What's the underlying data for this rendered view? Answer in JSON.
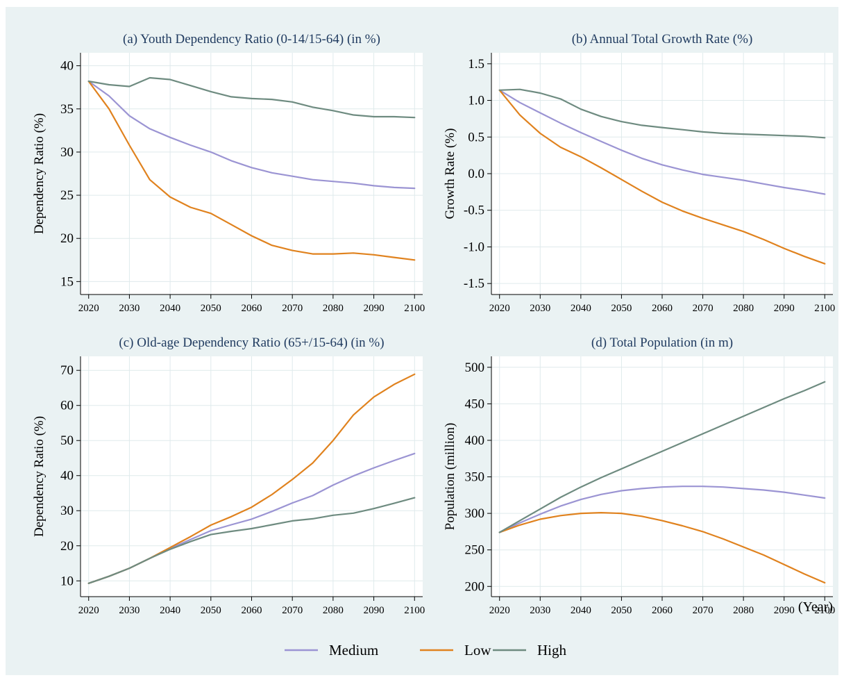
{
  "colors": {
    "Medium": "#9b94d3",
    "Low": "#e0821e",
    "High": "#6e8b80",
    "background": "#eaf2f3",
    "plot_bg": "#ffffff"
  },
  "legend": {
    "placement": "bottom-center",
    "items": [
      "Medium",
      "Low",
      "High"
    ]
  },
  "xlabel_common": "(Year)",
  "chart_data": [
    {
      "type": "line",
      "title": "(a) Youth Dependency Ratio (0-14/15-64) (in %)",
      "ylabel": "Dependency Ratio (%)",
      "xlim": [
        2018,
        2102
      ],
      "ylim": [
        13.5,
        41.5
      ],
      "xticks": [
        2020,
        2030,
        2040,
        2050,
        2060,
        2070,
        2080,
        2090,
        2100
      ],
      "yticks": [
        15,
        20,
        25,
        30,
        35,
        40
      ],
      "yticklabels": [
        "15",
        "20",
        "25",
        "30",
        "35",
        "40"
      ],
      "x": [
        2020,
        2025,
        2030,
        2035,
        2040,
        2045,
        2050,
        2055,
        2060,
        2065,
        2070,
        2075,
        2080,
        2085,
        2090,
        2095,
        2100
      ],
      "series": [
        {
          "name": "Medium",
          "values": [
            38.2,
            36.5,
            34.2,
            32.7,
            31.7,
            30.8,
            30.0,
            29.0,
            28.2,
            27.6,
            27.2,
            26.8,
            26.6,
            26.4,
            26.1,
            25.9,
            25.8
          ]
        },
        {
          "name": "Low",
          "values": [
            38.2,
            35.0,
            30.8,
            26.8,
            24.8,
            23.6,
            22.9,
            21.6,
            20.3,
            19.2,
            18.6,
            18.2,
            18.2,
            18.3,
            18.1,
            17.8,
            17.5
          ]
        },
        {
          "name": "High",
          "values": [
            38.2,
            37.8,
            37.6,
            38.6,
            38.4,
            37.7,
            37.0,
            36.4,
            36.2,
            36.1,
            35.8,
            35.2,
            34.8,
            34.3,
            34.1,
            34.1,
            34.0
          ]
        }
      ]
    },
    {
      "type": "line",
      "title": "(b) Annual Total Growth Rate (%)",
      "ylabel": "Growth Rate (%)",
      "xlim": [
        2018,
        2102
      ],
      "ylim": [
        -1.65,
        1.65
      ],
      "xticks": [
        2020,
        2030,
        2040,
        2050,
        2060,
        2070,
        2080,
        2090,
        2100
      ],
      "yticks": [
        -1.5,
        -1.0,
        -0.5,
        0.0,
        0.5,
        1.0,
        1.5
      ],
      "yticklabels": [
        "-1.5",
        "-1.0",
        "-0.5",
        "0.0",
        "0.5",
        "1.0",
        "1.5"
      ],
      "x": [
        2020,
        2025,
        2030,
        2035,
        2040,
        2045,
        2050,
        2055,
        2060,
        2065,
        2070,
        2075,
        2080,
        2085,
        2090,
        2095,
        2100
      ],
      "series": [
        {
          "name": "Medium",
          "values": [
            1.14,
            0.97,
            0.83,
            0.69,
            0.56,
            0.44,
            0.32,
            0.21,
            0.12,
            0.05,
            -0.01,
            -0.05,
            -0.09,
            -0.14,
            -0.19,
            -0.23,
            -0.28
          ]
        },
        {
          "name": "Low",
          "values": [
            1.14,
            0.8,
            0.55,
            0.36,
            0.23,
            0.08,
            -0.08,
            -0.24,
            -0.39,
            -0.51,
            -0.61,
            -0.7,
            -0.79,
            -0.9,
            -1.02,
            -1.13,
            -1.23
          ]
        },
        {
          "name": "High",
          "values": [
            1.14,
            1.15,
            1.1,
            1.02,
            0.88,
            0.78,
            0.71,
            0.66,
            0.63,
            0.6,
            0.57,
            0.55,
            0.54,
            0.53,
            0.52,
            0.51,
            0.49
          ]
        }
      ]
    },
    {
      "type": "line",
      "title": "(c) Old-age Dependency Ratio (65+/15-64) (in %)",
      "ylabel": "Dependency Ratio (%)",
      "xlim": [
        2018,
        2102
      ],
      "ylim": [
        5.5,
        74
      ],
      "xticks": [
        2020,
        2030,
        2040,
        2050,
        2060,
        2070,
        2080,
        2090,
        2100
      ],
      "yticks": [
        10,
        20,
        30,
        40,
        50,
        60,
        70
      ],
      "yticklabels": [
        "10",
        "20",
        "30",
        "40",
        "50",
        "60",
        "70"
      ],
      "x": [
        2020,
        2025,
        2030,
        2035,
        2040,
        2045,
        2050,
        2055,
        2060,
        2065,
        2070,
        2075,
        2080,
        2085,
        2090,
        2095,
        2100
      ],
      "series": [
        {
          "name": "Medium",
          "values": [
            9.3,
            11.3,
            13.6,
            16.4,
            19.2,
            21.8,
            24.3,
            26.0,
            27.6,
            29.8,
            32.2,
            34.3,
            37.3,
            39.9,
            42.2,
            44.3,
            46.3
          ]
        },
        {
          "name": "Low",
          "values": [
            9.3,
            11.3,
            13.6,
            16.4,
            19.5,
            22.6,
            25.9,
            28.3,
            31.0,
            34.6,
            38.9,
            43.6,
            50.0,
            57.3,
            62.4,
            66.0,
            68.9
          ]
        },
        {
          "name": "High",
          "values": [
            9.3,
            11.3,
            13.6,
            16.4,
            19.0,
            21.2,
            23.2,
            24.1,
            24.9,
            26.0,
            27.1,
            27.7,
            28.7,
            29.3,
            30.6,
            32.1,
            33.7
          ]
        }
      ]
    },
    {
      "type": "line",
      "title": "(d) Total Population (in m)",
      "ylabel": "Population (million)",
      "xlim": [
        2018,
        2102
      ],
      "ylim": [
        186,
        515
      ],
      "xticks": [
        2020,
        2030,
        2040,
        2050,
        2060,
        2070,
        2080,
        2090,
        2100
      ],
      "yticks": [
        200,
        250,
        300,
        350,
        400,
        450,
        500
      ],
      "yticklabels": [
        "200",
        "250",
        "300",
        "350",
        "400",
        "450",
        "500"
      ],
      "x": [
        2020,
        2025,
        2030,
        2035,
        2040,
        2045,
        2050,
        2055,
        2060,
        2065,
        2070,
        2075,
        2080,
        2085,
        2090,
        2095,
        2100
      ],
      "series": [
        {
          "name": "Medium",
          "values": [
            274,
            287,
            299,
            310,
            319,
            326,
            331,
            334,
            336,
            337,
            337,
            336,
            334,
            332,
            329,
            325,
            321
          ]
        },
        {
          "name": "Low",
          "values": [
            274,
            284,
            292,
            297,
            300,
            301,
            300,
            296,
            290,
            283,
            275,
            265,
            254,
            243,
            230,
            217,
            205
          ]
        },
        {
          "name": "High",
          "values": [
            274,
            290,
            306,
            322,
            336,
            349,
            361,
            373,
            385,
            397,
            409,
            421,
            433,
            445,
            457,
            468,
            480
          ]
        }
      ]
    }
  ]
}
